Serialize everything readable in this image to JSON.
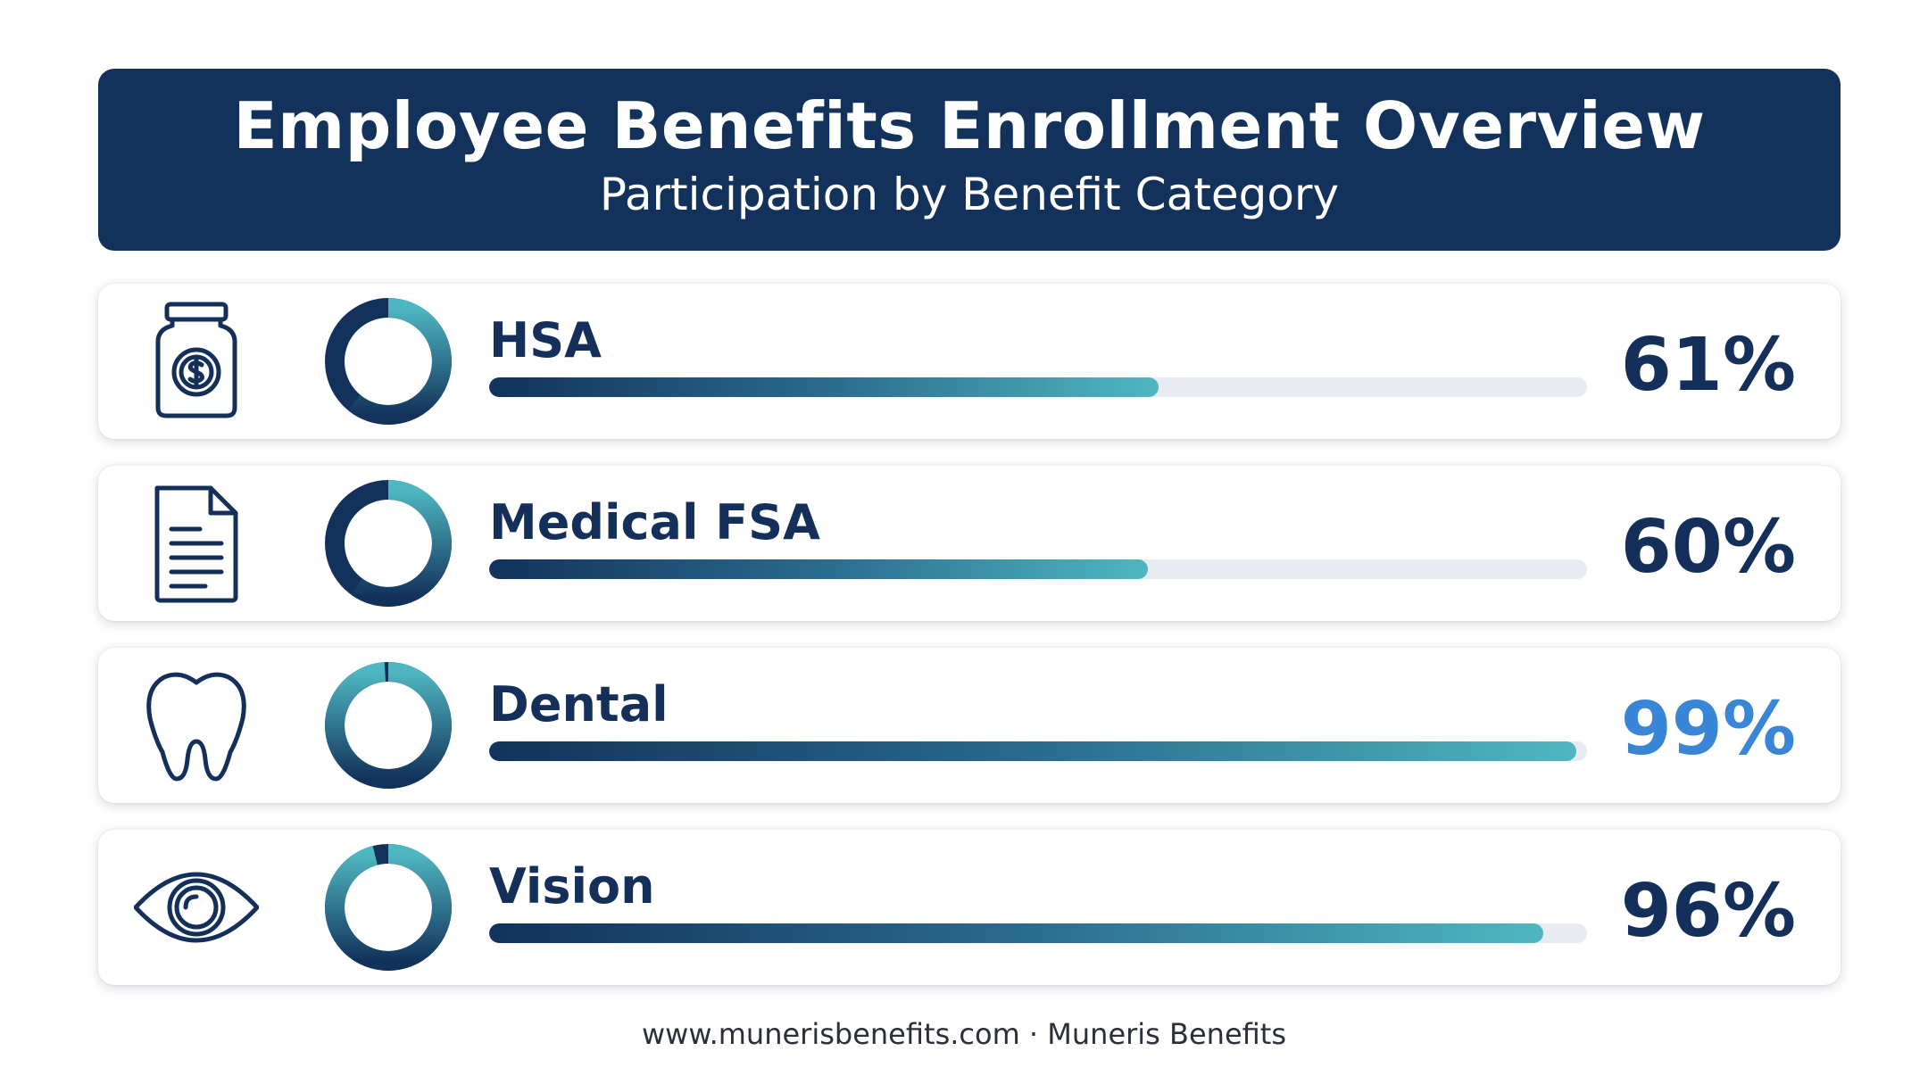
{
  "header": {
    "title": "Employee Benefits Enrollment Overview",
    "subtitle": "Participation by Benefit Category"
  },
  "colors": {
    "navy": "#12325b",
    "teal": "#4fb7c1",
    "track": "#e8ebf1",
    "highlight": "#3a86d6"
  },
  "rows": [
    {
      "label": "HSA",
      "value_label": "61%",
      "value": 61,
      "icon": "money-jar-icon",
      "highlight": false
    },
    {
      "label": "Medical FSA",
      "value_label": "60%",
      "value": 60,
      "icon": "document-icon",
      "highlight": false
    },
    {
      "label": "Dental",
      "value_label": "99%",
      "value": 99,
      "icon": "tooth-icon",
      "highlight": true
    },
    {
      "label": "Vision",
      "value_label": "96%",
      "value": 96,
      "icon": "eye-icon",
      "highlight": false
    }
  ],
  "chart_data": {
    "type": "bar",
    "orientation": "horizontal",
    "title": "Employee Benefits Enrollment Overview",
    "subtitle": "Participation by Benefit Category",
    "categories": [
      "HSA",
      "Medical FSA",
      "Dental",
      "Vision"
    ],
    "values": [
      61,
      60,
      99,
      96
    ],
    "unit": "%",
    "xlim": [
      0,
      100
    ],
    "grid": false
  },
  "footer": {
    "text": "www.munerisbenefits.com · Muneris Benefits"
  }
}
